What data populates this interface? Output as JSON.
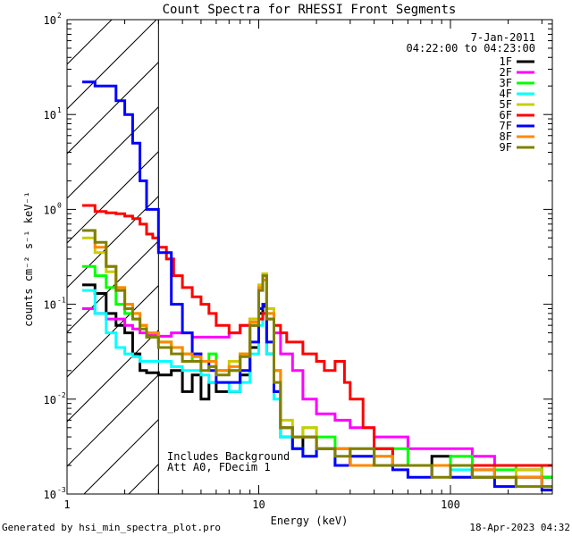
{
  "chart_data": {
    "type": "line",
    "title": "Count Spectra for RHESSI Front Segments",
    "xlabel": "Energy (keV)",
    "ylabel": "counts cm⁻² s⁻¹ keV⁻¹",
    "xscale": "log",
    "yscale": "log",
    "xlim": [
      1,
      340
    ],
    "ylim": [
      0.001,
      100
    ],
    "x_tick_labels": [
      {
        "value": 1,
        "label": "1"
      },
      {
        "value": 10,
        "label": "10"
      },
      {
        "value": 100,
        "label": "100"
      }
    ],
    "y_tick_labels": [
      {
        "value": 100,
        "base": "10",
        "exp": "2"
      },
      {
        "value": 10,
        "base": "10",
        "exp": "1"
      },
      {
        "value": 1,
        "base": "10",
        "exp": "0"
      },
      {
        "value": 0.1,
        "base": "10",
        "exp": "-1"
      },
      {
        "value": 0.01,
        "base": "10",
        "exp": "-2"
      },
      {
        "value": 0.001,
        "base": "10",
        "exp": "-3"
      }
    ],
    "legend_position": "top-right",
    "date": "7-Jan-2011",
    "time_range": "04:22:00 to 04:23:00",
    "hatched_region_max_keV": 3,
    "annotation_lines": [
      "Includes Background",
      "Att A0, FDecim 1"
    ],
    "series": [
      {
        "name": "1F",
        "color": "#000000",
        "x": [
          1.2,
          1.4,
          1.6,
          1.8,
          2.0,
          2.2,
          2.4,
          2.6,
          3.0,
          3.5,
          4.0,
          4.5,
          5.0,
          5.5,
          6.0,
          7.0,
          8.0,
          9.0,
          10.0,
          10.5,
          11,
          12,
          13,
          15,
          17,
          20,
          25,
          30,
          40,
          50,
          60,
          80,
          100,
          130,
          170,
          220,
          300
        ],
        "values": [
          0.16,
          0.13,
          0.08,
          0.06,
          0.05,
          0.03,
          0.02,
          0.019,
          0.018,
          0.02,
          0.012,
          0.018,
          0.01,
          0.015,
          0.012,
          0.012,
          0.018,
          0.035,
          0.08,
          0.095,
          0.03,
          0.012,
          0.004,
          0.003,
          0.004,
          0.003,
          0.003,
          0.002,
          0.003,
          0.002,
          0.002,
          0.0025,
          0.002,
          0.0015,
          0.002,
          0.0018,
          0.0015
        ]
      },
      {
        "name": "2F",
        "color": "#ff00ff",
        "x": [
          1.2,
          1.4,
          1.6,
          1.8,
          2.0,
          2.2,
          2.4,
          2.6,
          3.0,
          3.5,
          4.0,
          4.5,
          5.0,
          5.5,
          6.0,
          7.0,
          8.0,
          9.0,
          10.0,
          10.5,
          11,
          12,
          13,
          15,
          17,
          20,
          25,
          30,
          40,
          50,
          60,
          80,
          100,
          130,
          170,
          220,
          300
        ],
        "values": [
          0.09,
          0.08,
          0.07,
          0.07,
          0.06,
          0.055,
          0.05,
          0.048,
          0.046,
          0.05,
          0.05,
          0.045,
          0.045,
          0.045,
          0.045,
          0.05,
          0.06,
          0.07,
          0.09,
          0.1,
          0.09,
          0.05,
          0.03,
          0.02,
          0.01,
          0.007,
          0.006,
          0.005,
          0.004,
          0.004,
          0.003,
          0.003,
          0.003,
          0.0025,
          0.002,
          0.002,
          0.0015
        ]
      },
      {
        "name": "3F",
        "color": "#00ff00",
        "x": [
          1.2,
          1.4,
          1.6,
          1.8,
          2.0,
          2.2,
          2.4,
          2.6,
          3.0,
          3.5,
          4.0,
          4.5,
          5.0,
          5.5,
          6.0,
          7.0,
          8.0,
          9.0,
          10.0,
          10.5,
          11,
          12,
          13,
          15,
          17,
          20,
          25,
          30,
          40,
          50,
          60,
          80,
          100,
          130,
          170,
          220,
          300
        ],
        "values": [
          0.25,
          0.2,
          0.15,
          0.1,
          0.08,
          0.07,
          0.06,
          0.045,
          0.04,
          0.035,
          0.03,
          0.025,
          0.025,
          0.03,
          0.02,
          0.02,
          0.03,
          0.06,
          0.15,
          0.2,
          0.08,
          0.02,
          0.005,
          0.004,
          0.005,
          0.004,
          0.003,
          0.003,
          0.002,
          0.003,
          0.002,
          0.002,
          0.0025,
          0.002,
          0.0018,
          0.002,
          0.0015
        ]
      },
      {
        "name": "4F",
        "color": "#00ffff",
        "x": [
          1.2,
          1.4,
          1.6,
          1.8,
          2.0,
          2.2,
          2.4,
          2.6,
          3.0,
          3.5,
          4.0,
          4.5,
          5.0,
          5.5,
          6.0,
          7.0,
          8.0,
          9.0,
          10.0,
          10.5,
          11,
          12,
          13,
          15,
          17,
          20,
          25,
          30,
          40,
          50,
          60,
          80,
          100,
          130,
          170,
          220,
          300
        ],
        "values": [
          0.14,
          0.08,
          0.05,
          0.035,
          0.03,
          0.028,
          0.025,
          0.025,
          0.025,
          0.022,
          0.02,
          0.02,
          0.018,
          0.015,
          0.015,
          0.012,
          0.015,
          0.03,
          0.06,
          0.08,
          0.03,
          0.01,
          0.004,
          0.003,
          0.0025,
          0.003,
          0.002,
          0.002,
          0.0025,
          0.002,
          0.002,
          0.002,
          0.0018,
          0.002,
          0.0015,
          0.0015,
          0.0012
        ]
      },
      {
        "name": "5F",
        "color": "#cccc00",
        "x": [
          1.2,
          1.4,
          1.6,
          1.8,
          2.0,
          2.2,
          2.4,
          2.6,
          3.0,
          3.5,
          4.0,
          4.5,
          5.0,
          5.5,
          6.0,
          7.0,
          8.0,
          9.0,
          10.0,
          10.5,
          11,
          12,
          13,
          15,
          17,
          20,
          25,
          30,
          40,
          50,
          60,
          80,
          100,
          130,
          170,
          220,
          300
        ],
        "values": [
          0.5,
          0.35,
          0.22,
          0.15,
          0.1,
          0.08,
          0.06,
          0.05,
          0.04,
          0.035,
          0.03,
          0.03,
          0.025,
          0.025,
          0.02,
          0.025,
          0.03,
          0.07,
          0.16,
          0.21,
          0.09,
          0.02,
          0.006,
          0.004,
          0.005,
          0.003,
          0.003,
          0.0025,
          0.003,
          0.002,
          0.002,
          0.002,
          0.0015,
          0.002,
          0.0015,
          0.0018,
          0.0012
        ]
      },
      {
        "name": "6F",
        "color": "#ff0000",
        "x": [
          1.2,
          1.4,
          1.6,
          1.8,
          2.0,
          2.2,
          2.4,
          2.6,
          2.8,
          3.0,
          3.3,
          3.6,
          4.0,
          4.5,
          5.0,
          5.5,
          6.0,
          7.0,
          8.0,
          9.0,
          10.0,
          10.5,
          11,
          12,
          13,
          14,
          15,
          17,
          20,
          22,
          25,
          28,
          30,
          35,
          40,
          50
        ],
        "values": [
          1.1,
          0.95,
          0.92,
          0.9,
          0.85,
          0.8,
          0.7,
          0.55,
          0.5,
          0.4,
          0.3,
          0.2,
          0.15,
          0.12,
          0.1,
          0.08,
          0.06,
          0.05,
          0.06,
          0.06,
          0.07,
          0.08,
          0.07,
          0.06,
          0.05,
          0.04,
          0.04,
          0.03,
          0.025,
          0.02,
          0.025,
          0.015,
          0.01,
          0.005,
          0.003,
          0.002
        ]
      },
      {
        "name": "7F",
        "color": "#0000ff",
        "x": [
          1.2,
          1.4,
          1.6,
          1.8,
          2.0,
          2.2,
          2.4,
          2.6,
          3.0,
          3.5,
          4.0,
          4.5,
          5.0,
          5.5,
          6.0,
          7.0,
          8.0,
          9.0,
          10.0,
          10.5,
          11,
          12,
          13,
          15,
          17,
          20,
          25,
          30,
          40,
          50,
          60,
          80,
          100,
          130,
          170,
          220,
          300
        ],
        "values": [
          22,
          20,
          20,
          14,
          10,
          5,
          2,
          1,
          0.35,
          0.1,
          0.05,
          0.03,
          0.025,
          0.02,
          0.015,
          0.015,
          0.02,
          0.04,
          0.09,
          0.1,
          0.04,
          0.012,
          0.005,
          0.003,
          0.0025,
          0.003,
          0.002,
          0.0025,
          0.002,
          0.0018,
          0.0015,
          0.002,
          0.0015,
          0.0018,
          0.0012,
          0.0015,
          0.0011
        ]
      },
      {
        "name": "8F",
        "color": "#ff8800",
        "x": [
          1.2,
          1.4,
          1.6,
          1.8,
          2.0,
          2.2,
          2.4,
          2.6,
          3.0,
          3.5,
          4.0,
          4.5,
          5.0,
          5.5,
          6.0,
          7.0,
          8.0,
          9.0,
          10.0,
          10.5,
          11,
          12,
          13,
          15,
          17,
          20,
          25,
          30,
          40,
          50,
          60,
          80,
          100,
          130,
          170,
          220,
          300
        ],
        "values": [
          0.6,
          0.4,
          0.25,
          0.15,
          0.1,
          0.08,
          0.06,
          0.05,
          0.04,
          0.035,
          0.03,
          0.028,
          0.025,
          0.025,
          0.02,
          0.022,
          0.03,
          0.065,
          0.15,
          0.18,
          0.08,
          0.02,
          0.005,
          0.004,
          0.004,
          0.003,
          0.003,
          0.002,
          0.0025,
          0.002,
          0.002,
          0.002,
          0.002,
          0.0018,
          0.0015,
          0.0015,
          0.0012
        ]
      },
      {
        "name": "9F",
        "color": "#808000",
        "x": [
          1.2,
          1.4,
          1.6,
          1.8,
          2.0,
          2.2,
          2.4,
          2.6,
          3.0,
          3.5,
          4.0,
          4.5,
          5.0,
          5.5,
          6.0,
          7.0,
          8.0,
          9.0,
          10.0,
          10.5,
          11,
          12,
          13,
          15,
          17,
          20,
          25,
          30,
          40,
          50,
          60,
          80,
          100,
          130,
          170,
          220,
          300
        ],
        "values": [
          0.6,
          0.45,
          0.25,
          0.14,
          0.09,
          0.07,
          0.055,
          0.045,
          0.035,
          0.03,
          0.025,
          0.025,
          0.02,
          0.022,
          0.018,
          0.02,
          0.028,
          0.06,
          0.14,
          0.2,
          0.07,
          0.015,
          0.005,
          0.004,
          0.004,
          0.003,
          0.0025,
          0.003,
          0.002,
          0.002,
          0.002,
          0.0015,
          0.002,
          0.0015,
          0.0015,
          0.0012,
          0.0012
        ]
      }
    ]
  },
  "footer": {
    "generated_by": "Generated by hsi_min_spectra_plot.pro",
    "timestamp": "18-Apr-2023 04:32"
  }
}
